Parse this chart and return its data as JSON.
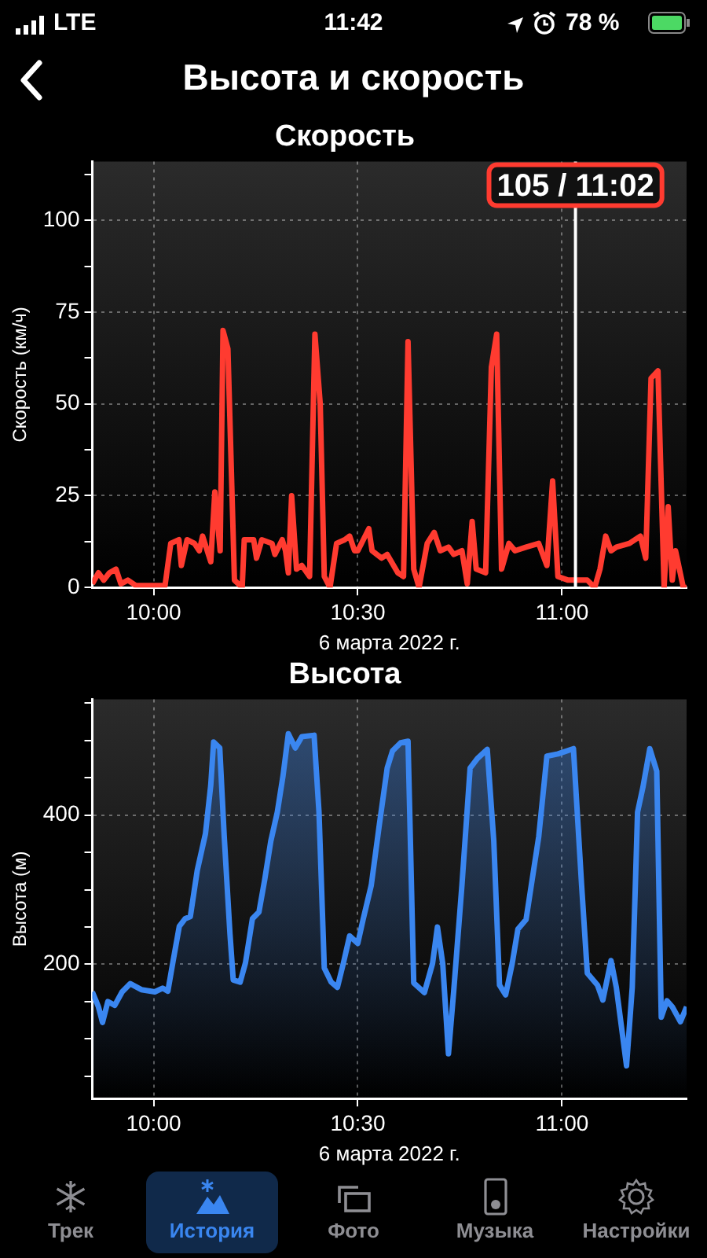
{
  "chart_data": [
    {
      "type": "other",
      "title": "Высота и скорость",
      "annotations": [
        "LTE",
        "11:42",
        "78 %",
        "Трек",
        "История",
        "Фото",
        "Музыка",
        "Настройки"
      ]
    },
    {
      "type": "line",
      "title": "Скорость",
      "xlabel": "6 марта 2022 г.",
      "ylabel": "Скорость (км/ч)",
      "xlim": [
        9.85,
        11.305
      ],
      "xticks": [
        {
          "value": 10,
          "label": "10:00"
        },
        {
          "value": 10.5,
          "label": "10:30"
        },
        {
          "value": 11,
          "label": "11:00"
        }
      ],
      "ylim": [
        0,
        116
      ],
      "yticks": [
        0,
        {
          "value": 12.5,
          "label": null
        },
        25,
        {
          "value": 37.5,
          "label": null
        },
        50,
        {
          "value": 62.5,
          "label": null
        },
        75,
        {
          "value": 87.5,
          "label": null
        },
        100,
        {
          "value": 112.5,
          "label": null
        }
      ],
      "grid": true,
      "marker": "none",
      "line_style": "solid",
      "x": [
        9.85,
        9.865,
        9.878,
        9.892,
        9.908,
        9.92,
        9.937,
        9.957,
        10.028,
        10.042,
        10.062,
        10.068,
        10.082,
        10.1,
        10.112,
        10.12,
        10.14,
        10.15,
        10.163,
        10.17,
        10.182,
        10.198,
        10.217,
        10.222,
        10.245,
        10.252,
        10.265,
        10.29,
        10.297,
        10.315,
        10.323,
        10.33,
        10.338,
        10.35,
        10.363,
        10.382,
        10.395,
        10.408,
        10.418,
        10.432,
        10.448,
        10.468,
        10.48,
        10.492,
        10.5,
        10.527,
        10.535,
        10.558,
        10.572,
        10.598,
        10.612,
        10.623,
        10.637,
        10.65,
        10.67,
        10.687,
        10.702,
        10.722,
        10.735,
        10.755,
        10.768,
        10.78,
        10.79,
        10.813,
        10.827,
        10.84,
        10.852,
        10.87,
        10.885,
        10.912,
        10.943,
        10.963,
        10.977,
        10.99,
        11.015,
        11.028,
        11.04,
        11.062,
        11.08,
        11.093,
        11.107,
        11.12,
        11.133,
        11.165,
        11.192,
        11.205,
        11.218,
        11.235,
        11.25,
        11.26,
        11.27,
        11.278,
        11.297,
        11.305
      ],
      "series": [
        {
          "color": "#ff3b30",
          "values": [
            1,
            4,
            2,
            4,
            5,
            1,
            2,
            0.5,
            0.5,
            12,
            13,
            6,
            13,
            12,
            10,
            14,
            7,
            26,
            10,
            70,
            65,
            2,
            0,
            13,
            13,
            8,
            13,
            12,
            9,
            13,
            10,
            4,
            25,
            5,
            6,
            3,
            69,
            50,
            3,
            0,
            12,
            13,
            14,
            10,
            10,
            16,
            10,
            8,
            9,
            4,
            3,
            67,
            5,
            0,
            12,
            15,
            10,
            11,
            9,
            10,
            1,
            18,
            5,
            4,
            60,
            69,
            5,
            12,
            10,
            11,
            12,
            6,
            29,
            3,
            2,
            2,
            2,
            2,
            0,
            5,
            14,
            10,
            11,
            12,
            14,
            8,
            57,
            59,
            0,
            22,
            2,
            10,
            0,
            0
          ]
        }
      ],
      "ref_lines": [
        {
          "axis": "x",
          "value": 11.033,
          "label": "105 / 11:02",
          "color": "#ffffff"
        }
      ]
    },
    {
      "type": "area",
      "title": "Высота",
      "xlabel": "6 марта 2022 г.",
      "ylabel": "Высота (м)",
      "xlim": [
        9.85,
        11.305
      ],
      "xticks": [
        {
          "value": 10,
          "label": "10:00"
        },
        {
          "value": 10.5,
          "label": "10:30"
        },
        {
          "value": 11,
          "label": "11:00"
        }
      ],
      "ylim": [
        20,
        555
      ],
      "yticks": [
        {
          "value": 50,
          "label": null
        },
        {
          "value": 100,
          "label": null
        },
        {
          "value": 150,
          "label": null
        },
        200,
        {
          "value": 250,
          "label": null
        },
        {
          "value": 300,
          "label": null
        },
        {
          "value": 350,
          "label": null
        },
        400,
        {
          "value": 450,
          "label": null
        },
        {
          "value": 500,
          "label": null
        },
        {
          "value": 550,
          "label": null
        }
      ],
      "grid": true,
      "marker": "none",
      "line_style": "solid",
      "x": [
        9.85,
        9.865,
        9.875,
        9.888,
        9.905,
        9.923,
        9.943,
        9.97,
        10.003,
        10.022,
        10.035,
        10.048,
        10.063,
        10.077,
        10.09,
        10.107,
        10.127,
        10.14,
        10.147,
        10.162,
        10.173,
        10.187,
        10.195,
        10.212,
        10.225,
        10.242,
        10.258,
        10.272,
        10.287,
        10.303,
        10.317,
        10.33,
        10.347,
        10.363,
        10.393,
        10.405,
        10.418,
        10.435,
        10.45,
        10.465,
        10.48,
        10.5,
        10.513,
        10.533,
        10.552,
        10.572,
        10.585,
        10.605,
        10.623,
        10.637,
        10.663,
        10.683,
        10.695,
        10.708,
        10.722,
        10.735,
        10.755,
        10.775,
        10.793,
        10.817,
        10.833,
        10.847,
        10.862,
        10.878,
        10.892,
        10.912,
        10.943,
        10.963,
        10.99,
        11.028,
        11.048,
        11.062,
        11.087,
        11.1,
        11.12,
        11.133,
        11.158,
        11.172,
        11.185,
        11.198,
        11.215,
        11.232,
        11.243,
        11.257,
        11.27,
        11.29,
        11.305
      ],
      "series": [
        {
          "color": "#3a86f0",
          "values": [
            163,
            143,
            122,
            150,
            145,
            163,
            174,
            166,
            163,
            168,
            164,
            205,
            251,
            261,
            264,
            326,
            375,
            440,
            498,
            490,
            371,
            241,
            179,
            176,
            202,
            261,
            270,
            313,
            365,
            404,
            453,
            509,
            490,
            505,
            507,
            404,
            195,
            176,
            169,
            202,
            238,
            228,
            260,
            306,
            384,
            463,
            486,
            497,
            499,
            175,
            162,
            201,
            250,
            201,
            80,
            165,
            306,
            463,
            476,
            488,
            365,
            172,
            159,
            201,
            247,
            260,
            371,
            479,
            482,
            489,
            306,
            188,
            172,
            152,
            205,
            169,
            64,
            169,
            404,
            437,
            489,
            459,
            129,
            151,
            143,
            123,
            143
          ]
        }
      ]
    }
  ]
}
